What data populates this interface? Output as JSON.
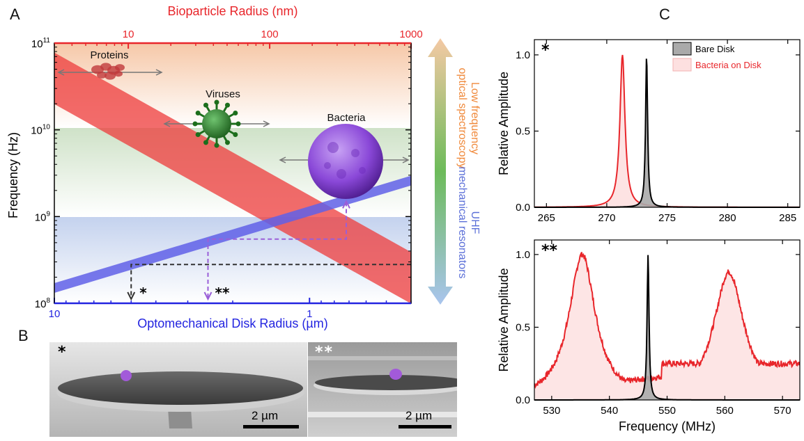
{
  "panels": {
    "a": "A",
    "b": "B",
    "c": "C"
  },
  "colors": {
    "red": "#e8262b",
    "blue": "#2324e0",
    "band_red": "#ee3b3b",
    "band_blue": "#6060e8",
    "orange_text": "#f08a3c",
    "blue_text": "#5b6fd8",
    "bacteria_purple": "#8a48d8",
    "virus_green": "#2e8b2e",
    "fill_pink": "#fde0e0"
  },
  "chart_data": [
    {
      "id": "A",
      "type": "line",
      "log_scale": true,
      "grid": false,
      "top_axis": {
        "label": "Bioparticle Radius (nm)",
        "ticks": [
          "10",
          "100",
          "1000"
        ],
        "range": [
          3,
          1000
        ]
      },
      "bottom_axis": {
        "label": "Optomechanical Disk Radius (µm)",
        "ticks": [
          "10",
          "1"
        ],
        "range": [
          10,
          0.4
        ],
        "reversed": true
      },
      "left_axis": {
        "label": "Frequency (Hz)",
        "ticks": [
          "10^8",
          "10^9",
          "10^10",
          "10^11"
        ],
        "range": [
          100000000.0,
          100000000000.0
        ]
      },
      "regions": [
        {
          "range": [
            10000000000.0,
            100000000000.0
          ],
          "color": "orange"
        },
        {
          "range": [
            1000000000.0,
            10000000000.0
          ],
          "color": "green"
        },
        {
          "range": [
            100000000.0,
            1000000000.0
          ],
          "color": "blue"
        }
      ],
      "side_labels": [
        "Low frequency optical spectroscopy",
        "UHF mechanical resonators"
      ],
      "series": [
        {
          "name": "",
          "color": "red",
          "band": true,
          "points": [
            [
              3,
              40000000000.0
            ],
            [
              1000,
              200000000.0
            ]
          ]
        },
        {
          "name": "",
          "color": "blue",
          "band": true,
          "points": [
            [
              10,
              150000000.0
            ],
            [
              0.4,
              2600000000.0
            ]
          ]
        }
      ],
      "annotations": [
        {
          "text": "Proteins",
          "x_nm": 7
        },
        {
          "text": "Viruses",
          "x_nm": 30
        },
        {
          "text": "Bacteria",
          "x_nm": 200
        },
        {
          "text": "*",
          "disk_um": 5,
          "freq_hz": 280000000.0
        },
        {
          "text": "**",
          "disk_um": 2.5,
          "freq_hz": 550000000.0
        }
      ]
    },
    {
      "id": "C-top",
      "type": "line",
      "marker": "*",
      "xlabel": "",
      "ylabel": "Relative Amplitude",
      "xlim": [
        264,
        286
      ],
      "xticks": [
        265,
        270,
        275,
        280,
        285
      ],
      "ylim": [
        0,
        1.1
      ],
      "yticks": [
        "0.0",
        "0.5",
        "1.0"
      ],
      "legend_position": "top-right",
      "series": [
        {
          "name": "Bare Disk",
          "color": "black",
          "fill": "#aaaaaa",
          "center": 273.3,
          "width": 0.1,
          "peak": 1.0
        },
        {
          "name": "Bacteria on Disk",
          "color": "red",
          "fill": "#fde0e0",
          "center": 271.3,
          "width": 0.25,
          "peak": 1.0
        }
      ]
    },
    {
      "id": "C-bottom",
      "type": "line",
      "marker": "**",
      "xlabel": "Frequency (MHz)",
      "ylabel": "Relative Amplitude",
      "xlim": [
        527,
        573
      ],
      "xticks": [
        530,
        540,
        550,
        560,
        570
      ],
      "ylim": [
        0,
        1.1
      ],
      "yticks": [
        "0.0",
        "0.5",
        "1.0"
      ],
      "series": [
        {
          "name": "Bare Disk",
          "color": "black",
          "fill": "#aaaaaa",
          "peaks": [
            [
              546.7,
              1.0,
              0.2
            ]
          ]
        },
        {
          "name": "Bacteria on Disk",
          "color": "red",
          "fill": "#fde0e0",
          "peaks": [
            [
              535.3,
              1.0,
              2.8
            ],
            [
              560.7,
              0.88,
              3.2
            ]
          ],
          "baseline": 0.25
        }
      ]
    }
  ],
  "sem_images": [
    {
      "marker": "*",
      "scale": "2 µm"
    },
    {
      "marker": "**",
      "scale": "2 µm"
    }
  ]
}
